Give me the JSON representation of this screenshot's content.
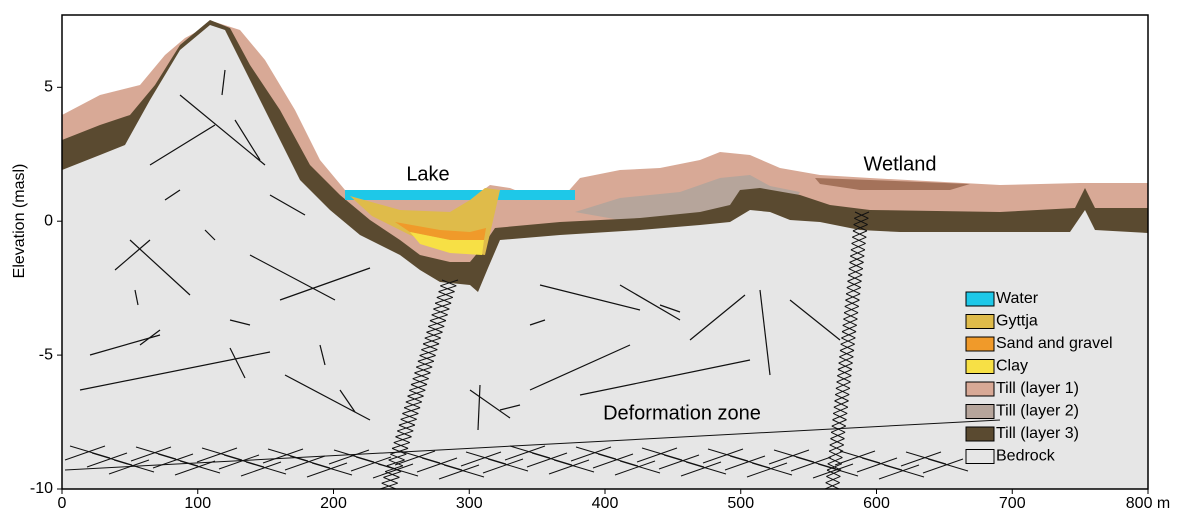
{
  "axes": {
    "y_label": "Elevation (masl)",
    "xlim": [
      0,
      800
    ],
    "ylim": [
      -10,
      7.7
    ],
    "xticks": [
      0,
      100,
      200,
      300,
      400,
      500,
      600,
      700,
      {
        "value": 800,
        "label": "800 m"
      }
    ],
    "yticks": [
      -10,
      -5,
      0,
      5
    ]
  },
  "annotations": {
    "lake": "Lake",
    "wetland": "Wetland",
    "deformation_zone": "Deformation zone"
  },
  "legend": [
    {
      "label": "Water",
      "color": "#1ec8e8"
    },
    {
      "label": "Gyttja",
      "color": "#dfbb4a"
    },
    {
      "label": "Sand and gravel",
      "color": "#f09a2a"
    },
    {
      "label": "Clay",
      "color": "#f7e045"
    },
    {
      "label": "Till (layer 1)",
      "color": "#d8a996"
    },
    {
      "label": "Till (layer 2)",
      "color": "#b6a59b"
    },
    {
      "label": "Till (layer 3)",
      "color": "#5a4a30"
    },
    {
      "label": "Bedrock",
      "color": "#e6e6e6"
    }
  ]
}
